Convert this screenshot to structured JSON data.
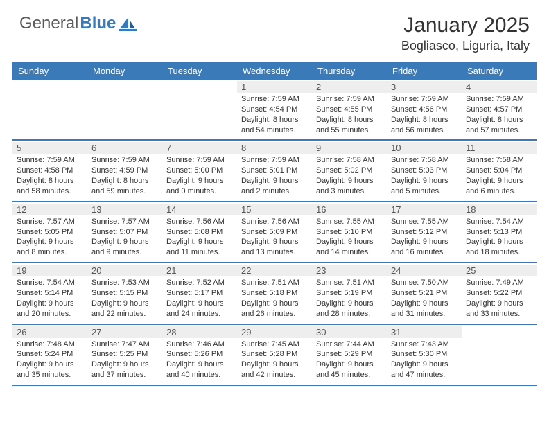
{
  "logo": {
    "text1": "General",
    "text2": "Blue"
  },
  "title": "January 2025",
  "location": "Bogliasco, Liguria, Italy",
  "colors": {
    "accent": "#3a7ab8",
    "header_bg": "#3a7ab8",
    "header_text": "#ffffff",
    "daynum_bg": "#eeeeee",
    "text": "#333333",
    "background": "#ffffff"
  },
  "fonts": {
    "title_size": 30,
    "location_size": 18,
    "dayhead_size": 13,
    "detail_size": 11
  },
  "dayNames": [
    "Sunday",
    "Monday",
    "Tuesday",
    "Wednesday",
    "Thursday",
    "Friday",
    "Saturday"
  ],
  "weeks": [
    [
      null,
      null,
      null,
      {
        "n": "1",
        "sr": "7:59 AM",
        "ss": "4:54 PM",
        "dl": "8 hours and 54 minutes."
      },
      {
        "n": "2",
        "sr": "7:59 AM",
        "ss": "4:55 PM",
        "dl": "8 hours and 55 minutes."
      },
      {
        "n": "3",
        "sr": "7:59 AM",
        "ss": "4:56 PM",
        "dl": "8 hours and 56 minutes."
      },
      {
        "n": "4",
        "sr": "7:59 AM",
        "ss": "4:57 PM",
        "dl": "8 hours and 57 minutes."
      }
    ],
    [
      {
        "n": "5",
        "sr": "7:59 AM",
        "ss": "4:58 PM",
        "dl": "8 hours and 58 minutes."
      },
      {
        "n": "6",
        "sr": "7:59 AM",
        "ss": "4:59 PM",
        "dl": "8 hours and 59 minutes."
      },
      {
        "n": "7",
        "sr": "7:59 AM",
        "ss": "5:00 PM",
        "dl": "9 hours and 0 minutes."
      },
      {
        "n": "8",
        "sr": "7:59 AM",
        "ss": "5:01 PM",
        "dl": "9 hours and 2 minutes."
      },
      {
        "n": "9",
        "sr": "7:58 AM",
        "ss": "5:02 PM",
        "dl": "9 hours and 3 minutes."
      },
      {
        "n": "10",
        "sr": "7:58 AM",
        "ss": "5:03 PM",
        "dl": "9 hours and 5 minutes."
      },
      {
        "n": "11",
        "sr": "7:58 AM",
        "ss": "5:04 PM",
        "dl": "9 hours and 6 minutes."
      }
    ],
    [
      {
        "n": "12",
        "sr": "7:57 AM",
        "ss": "5:05 PM",
        "dl": "9 hours and 8 minutes."
      },
      {
        "n": "13",
        "sr": "7:57 AM",
        "ss": "5:07 PM",
        "dl": "9 hours and 9 minutes."
      },
      {
        "n": "14",
        "sr": "7:56 AM",
        "ss": "5:08 PM",
        "dl": "9 hours and 11 minutes."
      },
      {
        "n": "15",
        "sr": "7:56 AM",
        "ss": "5:09 PM",
        "dl": "9 hours and 13 minutes."
      },
      {
        "n": "16",
        "sr": "7:55 AM",
        "ss": "5:10 PM",
        "dl": "9 hours and 14 minutes."
      },
      {
        "n": "17",
        "sr": "7:55 AM",
        "ss": "5:12 PM",
        "dl": "9 hours and 16 minutes."
      },
      {
        "n": "18",
        "sr": "7:54 AM",
        "ss": "5:13 PM",
        "dl": "9 hours and 18 minutes."
      }
    ],
    [
      {
        "n": "19",
        "sr": "7:54 AM",
        "ss": "5:14 PM",
        "dl": "9 hours and 20 minutes."
      },
      {
        "n": "20",
        "sr": "7:53 AM",
        "ss": "5:15 PM",
        "dl": "9 hours and 22 minutes."
      },
      {
        "n": "21",
        "sr": "7:52 AM",
        "ss": "5:17 PM",
        "dl": "9 hours and 24 minutes."
      },
      {
        "n": "22",
        "sr": "7:51 AM",
        "ss": "5:18 PM",
        "dl": "9 hours and 26 minutes."
      },
      {
        "n": "23",
        "sr": "7:51 AM",
        "ss": "5:19 PM",
        "dl": "9 hours and 28 minutes."
      },
      {
        "n": "24",
        "sr": "7:50 AM",
        "ss": "5:21 PM",
        "dl": "9 hours and 31 minutes."
      },
      {
        "n": "25",
        "sr": "7:49 AM",
        "ss": "5:22 PM",
        "dl": "9 hours and 33 minutes."
      }
    ],
    [
      {
        "n": "26",
        "sr": "7:48 AM",
        "ss": "5:24 PM",
        "dl": "9 hours and 35 minutes."
      },
      {
        "n": "27",
        "sr": "7:47 AM",
        "ss": "5:25 PM",
        "dl": "9 hours and 37 minutes."
      },
      {
        "n": "28",
        "sr": "7:46 AM",
        "ss": "5:26 PM",
        "dl": "9 hours and 40 minutes."
      },
      {
        "n": "29",
        "sr": "7:45 AM",
        "ss": "5:28 PM",
        "dl": "9 hours and 42 minutes."
      },
      {
        "n": "30",
        "sr": "7:44 AM",
        "ss": "5:29 PM",
        "dl": "9 hours and 45 minutes."
      },
      {
        "n": "31",
        "sr": "7:43 AM",
        "ss": "5:30 PM",
        "dl": "9 hours and 47 minutes."
      },
      null
    ]
  ],
  "labels": {
    "sunrise": "Sunrise:",
    "sunset": "Sunset:",
    "daylight": "Daylight:"
  }
}
